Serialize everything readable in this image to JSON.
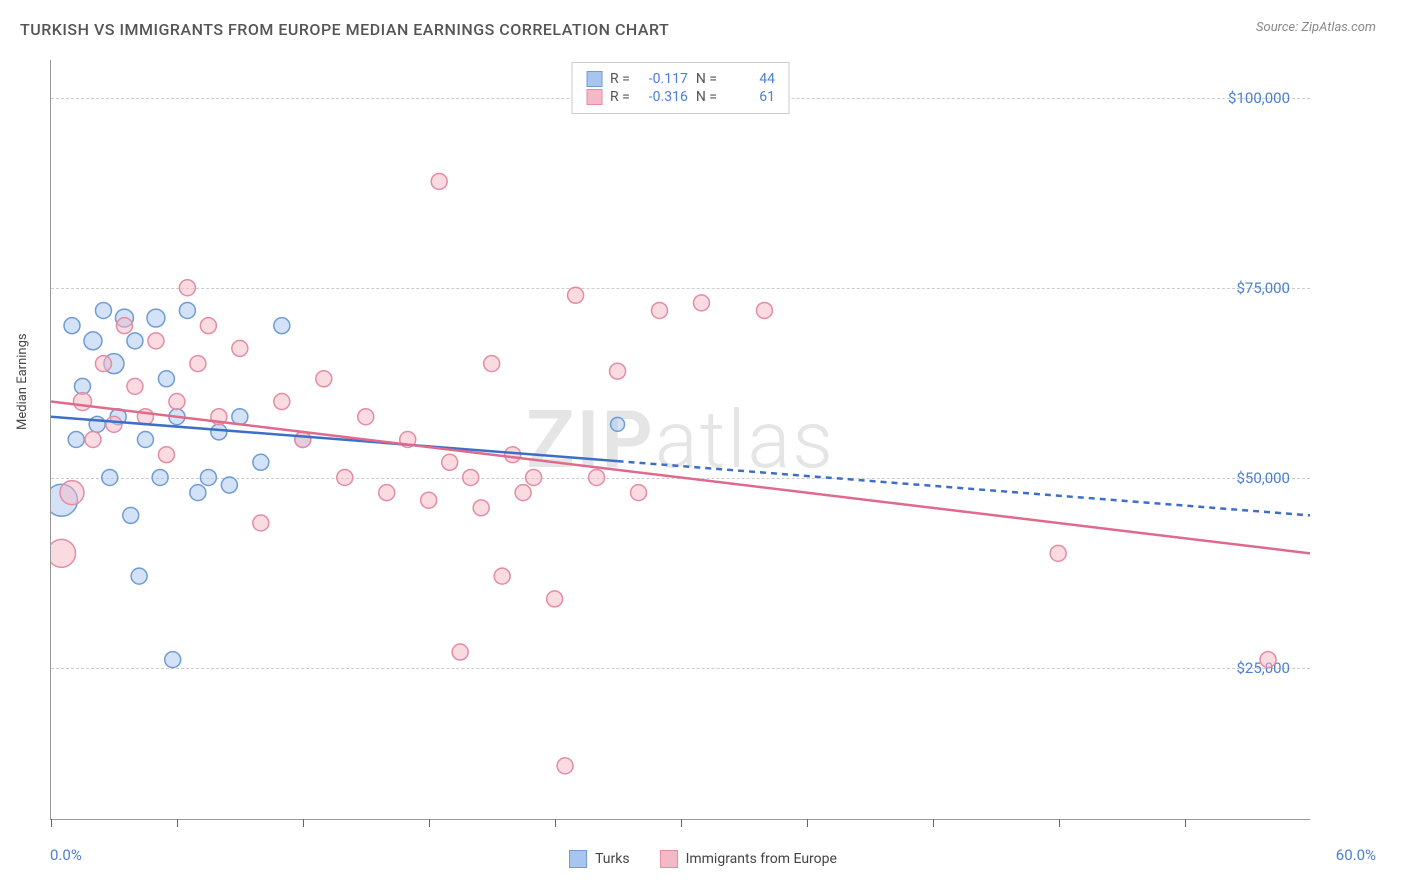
{
  "title": "TURKISH VS IMMIGRANTS FROM EUROPE MEDIAN EARNINGS CORRELATION CHART",
  "source": "Source: ZipAtlas.com",
  "watermark_a": "ZIP",
  "watermark_b": "atlas",
  "chart": {
    "type": "scatter",
    "ylabel": "Median Earnings",
    "xlim": [
      0,
      60
    ],
    "ylim": [
      5000,
      105000
    ],
    "x_axis_label_left": "0.0%",
    "x_axis_label_right": "60.0%",
    "ytick_values": [
      25000,
      50000,
      75000,
      100000
    ],
    "ytick_labels": [
      "$25,000",
      "$50,000",
      "$75,000",
      "$100,000"
    ],
    "xtick_positions": [
      0,
      6,
      12,
      18,
      24,
      30,
      36,
      42,
      48,
      54
    ],
    "background_color": "#ffffff",
    "grid_color": "#cccccc",
    "axis_color": "#999999",
    "tick_label_color": "#4a7fd6",
    "series": [
      {
        "name": "Turks",
        "color_fill": "#a8c5ed",
        "color_stroke": "#6f9cd6",
        "fill_opacity": 0.5,
        "r_val": "-0.117",
        "n_val": "44",
        "trend": {
          "x1": 0,
          "y1": 58000,
          "x2": 60,
          "y2": 45000,
          "solid_until_x": 27,
          "color": "#3d6fc7",
          "stroke_width": 2.5
        },
        "points": [
          {
            "x": 0.5,
            "y": 47000,
            "r": 16
          },
          {
            "x": 1,
            "y": 70000,
            "r": 8
          },
          {
            "x": 1.2,
            "y": 55000,
            "r": 8
          },
          {
            "x": 1.5,
            "y": 62000,
            "r": 8
          },
          {
            "x": 2,
            "y": 68000,
            "r": 9
          },
          {
            "x": 2.2,
            "y": 57000,
            "r": 8
          },
          {
            "x": 2.5,
            "y": 72000,
            "r": 8
          },
          {
            "x": 2.8,
            "y": 50000,
            "r": 8
          },
          {
            "x": 3,
            "y": 65000,
            "r": 10
          },
          {
            "x": 3.2,
            "y": 58000,
            "r": 8
          },
          {
            "x": 3.5,
            "y": 71000,
            "r": 9
          },
          {
            "x": 3.8,
            "y": 45000,
            "r": 8
          },
          {
            "x": 4,
            "y": 68000,
            "r": 8
          },
          {
            "x": 4.2,
            "y": 37000,
            "r": 8
          },
          {
            "x": 4.5,
            "y": 55000,
            "r": 8
          },
          {
            "x": 5,
            "y": 71000,
            "r": 9
          },
          {
            "x": 5.2,
            "y": 50000,
            "r": 8
          },
          {
            "x": 5.5,
            "y": 63000,
            "r": 8
          },
          {
            "x": 5.8,
            "y": 26000,
            "r": 8
          },
          {
            "x": 6,
            "y": 58000,
            "r": 8
          },
          {
            "x": 6.5,
            "y": 72000,
            "r": 8
          },
          {
            "x": 7,
            "y": 48000,
            "r": 8
          },
          {
            "x": 7.5,
            "y": 50000,
            "r": 8
          },
          {
            "x": 8,
            "y": 56000,
            "r": 8
          },
          {
            "x": 8.5,
            "y": 49000,
            "r": 8
          },
          {
            "x": 9,
            "y": 58000,
            "r": 8
          },
          {
            "x": 10,
            "y": 52000,
            "r": 8
          },
          {
            "x": 11,
            "y": 70000,
            "r": 8
          },
          {
            "x": 12,
            "y": 55000,
            "r": 8
          },
          {
            "x": 27,
            "y": 57000,
            "r": 7
          }
        ]
      },
      {
        "name": "Immigrants from Europe",
        "color_fill": "#f5b8c6",
        "color_stroke": "#e58ca3",
        "fill_opacity": 0.5,
        "r_val": "-0.316",
        "n_val": "61",
        "trend": {
          "x1": 0,
          "y1": 60000,
          "x2": 60,
          "y2": 40000,
          "solid_until_x": 60,
          "color": "#e06a8c",
          "stroke_width": 2.5
        },
        "points": [
          {
            "x": 0.5,
            "y": 40000,
            "r": 14
          },
          {
            "x": 1,
            "y": 48000,
            "r": 12
          },
          {
            "x": 1.5,
            "y": 60000,
            "r": 9
          },
          {
            "x": 2,
            "y": 55000,
            "r": 8
          },
          {
            "x": 2.5,
            "y": 65000,
            "r": 8
          },
          {
            "x": 3,
            "y": 57000,
            "r": 8
          },
          {
            "x": 3.5,
            "y": 70000,
            "r": 8
          },
          {
            "x": 4,
            "y": 62000,
            "r": 8
          },
          {
            "x": 4.5,
            "y": 58000,
            "r": 8
          },
          {
            "x": 5,
            "y": 68000,
            "r": 8
          },
          {
            "x": 5.5,
            "y": 53000,
            "r": 8
          },
          {
            "x": 6,
            "y": 60000,
            "r": 8
          },
          {
            "x": 6.5,
            "y": 75000,
            "r": 8
          },
          {
            "x": 7,
            "y": 65000,
            "r": 8
          },
          {
            "x": 7.5,
            "y": 70000,
            "r": 8
          },
          {
            "x": 8,
            "y": 58000,
            "r": 8
          },
          {
            "x": 9,
            "y": 67000,
            "r": 8
          },
          {
            "x": 10,
            "y": 44000,
            "r": 8
          },
          {
            "x": 11,
            "y": 60000,
            "r": 8
          },
          {
            "x": 12,
            "y": 55000,
            "r": 8
          },
          {
            "x": 13,
            "y": 63000,
            "r": 8
          },
          {
            "x": 14,
            "y": 50000,
            "r": 8
          },
          {
            "x": 15,
            "y": 58000,
            "r": 8
          },
          {
            "x": 16,
            "y": 48000,
            "r": 8
          },
          {
            "x": 17,
            "y": 55000,
            "r": 8
          },
          {
            "x": 18,
            "y": 47000,
            "r": 8
          },
          {
            "x": 18.5,
            "y": 89000,
            "r": 8
          },
          {
            "x": 19,
            "y": 52000,
            "r": 8
          },
          {
            "x": 19.5,
            "y": 27000,
            "r": 8
          },
          {
            "x": 20,
            "y": 50000,
            "r": 8
          },
          {
            "x": 20.5,
            "y": 46000,
            "r": 8
          },
          {
            "x": 21,
            "y": 65000,
            "r": 8
          },
          {
            "x": 21.5,
            "y": 37000,
            "r": 8
          },
          {
            "x": 22,
            "y": 53000,
            "r": 8
          },
          {
            "x": 22.5,
            "y": 48000,
            "r": 8
          },
          {
            "x": 23,
            "y": 50000,
            "r": 8
          },
          {
            "x": 24,
            "y": 34000,
            "r": 8
          },
          {
            "x": 24.5,
            "y": 12000,
            "r": 8
          },
          {
            "x": 25,
            "y": 74000,
            "r": 8
          },
          {
            "x": 26,
            "y": 50000,
            "r": 8
          },
          {
            "x": 27,
            "y": 64000,
            "r": 8
          },
          {
            "x": 28,
            "y": 48000,
            "r": 8
          },
          {
            "x": 29,
            "y": 72000,
            "r": 8
          },
          {
            "x": 31,
            "y": 73000,
            "r": 8
          },
          {
            "x": 34,
            "y": 72000,
            "r": 8
          },
          {
            "x": 48,
            "y": 40000,
            "r": 8
          },
          {
            "x": 58,
            "y": 26000,
            "r": 8
          }
        ]
      }
    ],
    "stats_labels": {
      "r": "R =",
      "n": "N ="
    }
  },
  "legend": {
    "turks": "Turks",
    "immigrants": "Immigrants from Europe"
  }
}
